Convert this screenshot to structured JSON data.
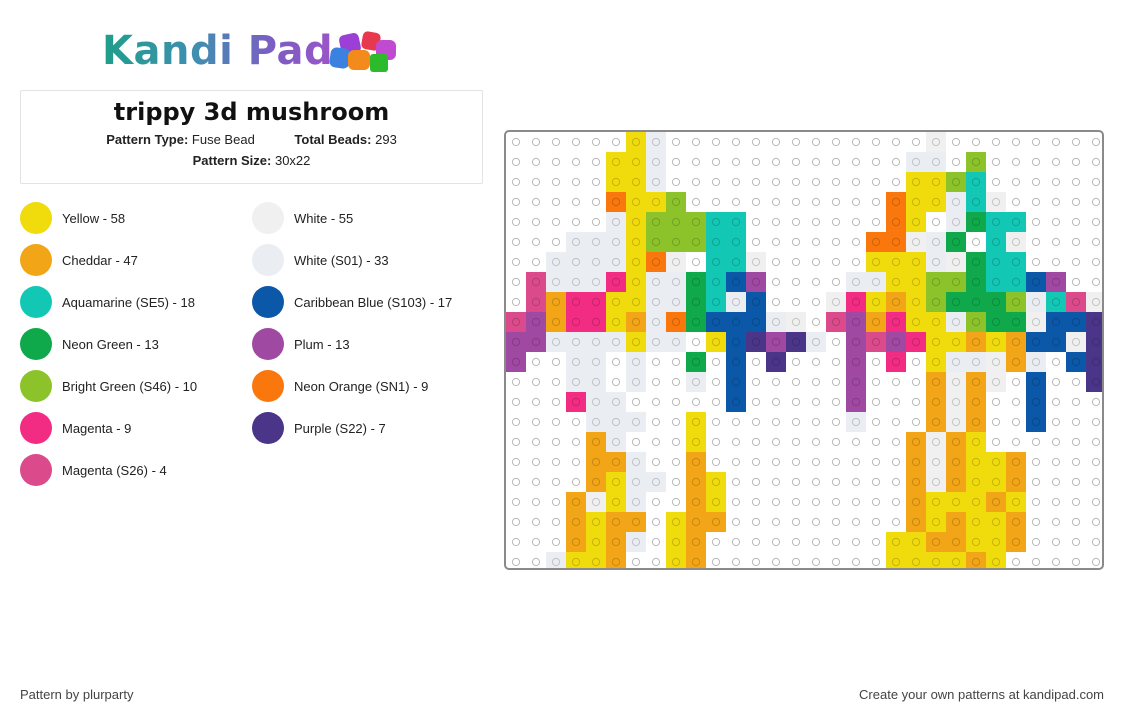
{
  "brand": {
    "name": "Kandi Pad"
  },
  "pattern": {
    "title": "trippy 3d mushroom",
    "type_label": "Pattern Type:",
    "type_value": "Fuse Bead",
    "beads_label": "Total Beads:",
    "beads_value": "293",
    "size_label": "Pattern Size:",
    "size_value": "30x22"
  },
  "legend": [
    {
      "label": "Yellow - 58",
      "color": "#f0db0c"
    },
    {
      "label": "White - 55",
      "color": "#f0f0f0"
    },
    {
      "label": "Cheddar - 47",
      "color": "#f2a516"
    },
    {
      "label": "White (S01) - 33",
      "color": "#eaedf2"
    },
    {
      "label": "Aquamarine (SE5) - 18",
      "color": "#13c7b5"
    },
    {
      "label": "Caribbean Blue (S103) - 17",
      "color": "#0b58a8"
    },
    {
      "label": "Neon Green - 13",
      "color": "#0fa94b"
    },
    {
      "label": "Plum - 13",
      "color": "#a049a3"
    },
    {
      "label": "Bright Green (S46) - 10",
      "color": "#8cc32a"
    },
    {
      "label": "Neon Orange (SN1) - 9",
      "color": "#f9770c"
    },
    {
      "label": "Magenta - 9",
      "color": "#f22b83"
    },
    {
      "label": "Purple (S22) - 7",
      "color": "#4a3589"
    },
    {
      "label": "Magenta (S26) - 4",
      "color": "#db4a8a"
    }
  ],
  "grid": {
    "columns": 30,
    "rows": 22,
    "palette": {
      "y": "#f0db0c",
      "w": "#f0f0f0",
      "c": "#f2a516",
      "s": "#eaedf2",
      "a": "#13c7b5",
      "b": "#0b58a8",
      "g": "#0fa94b",
      "p": "#a049a3",
      "l": "#8cc32a",
      "o": "#f9770c",
      "m": "#f22b83",
      "u": "#4a3589",
      "k": "#db4a8a"
    },
    "cells": [
      "......ys.............w........",
      ".....yys............ss.l.......",
      ".....yys............yyla.......",
      ".....oyyl..........oyysaw......",
      ".....sylllaa.......oy.sgaa.....",
      "...sssylllaa......oowsg.aw.....",
      "..ssssyow.aaw.....yyyswgaa.....",
      ".ksssmyssgabp....ssyyllgaabp...",
      ".kcmmyyssgasb...wmycylggglsakw.",
      "kpcmmycsogbbbsw.kpcmyyslggwbbu",
      "ppssssyss.ybupus.pkpmyycycbbwu",
      "p..ss.s..g.b.u...p.m.ysswcs.bu",
      "...ss.s..s.b.....p...cwcw.b..u",
      "...mss.....b.....p...cwc..b...",
      "....sss..y.......s...cwc..b...",
      "....cs...y..........cwcy......",
      "....ccs..c..........cwcyyc....",
      "....cyss.cy.........cwcyyc....",
      "...cwys..cy.........cyyycy....",
      "...cycc.ycc.........cycyyc....",
      "...cycs.yc.........yyccyyc....",
      "..syyc..yc.........yyyycy....."
    ]
  },
  "footer": {
    "credit": "Pattern by plurparty",
    "cta": "Create your own patterns at kandipad.com"
  }
}
